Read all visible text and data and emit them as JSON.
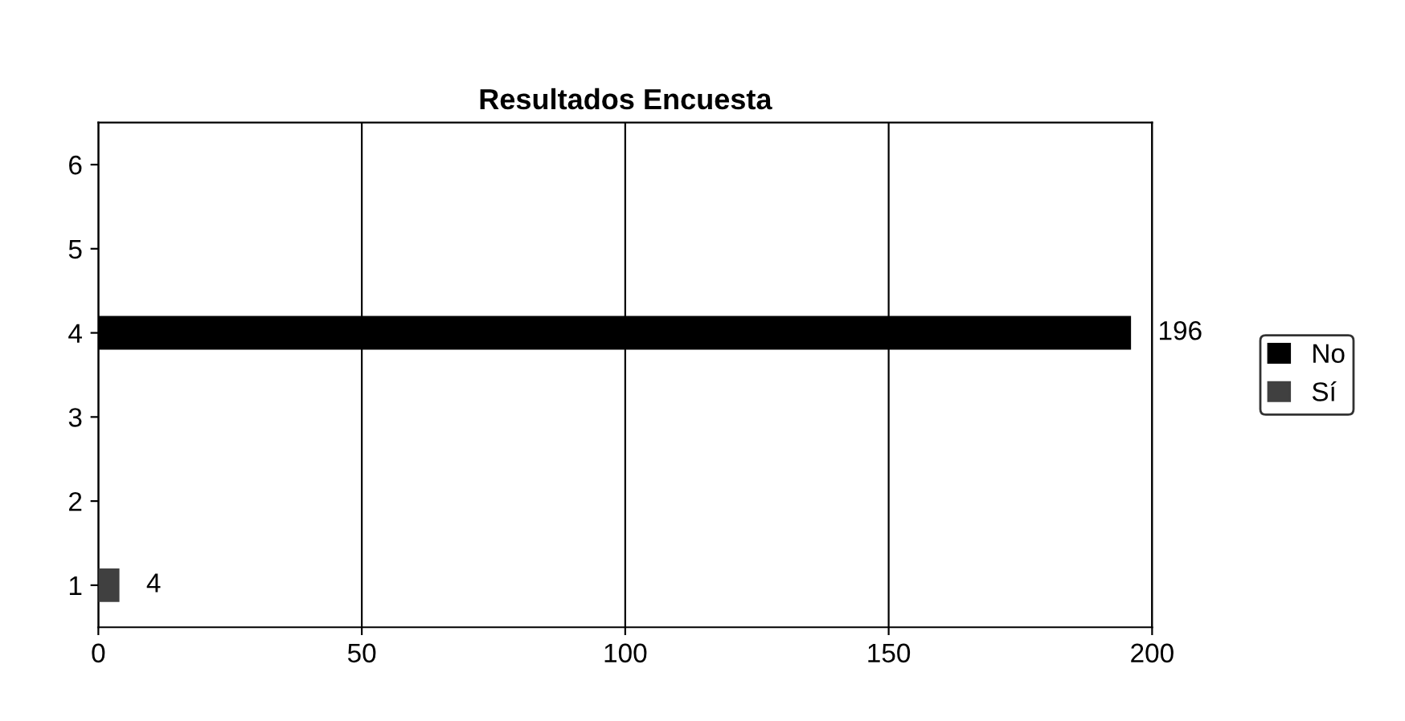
{
  "chart_data": {
    "type": "bar",
    "orientation": "horizontal",
    "title": "Resultados Encuesta",
    "categories": [
      "6",
      "5",
      "4",
      "3",
      "2",
      "1"
    ],
    "series": [
      {
        "name": "No",
        "color": "#000000",
        "values": [
          null,
          null,
          196,
          null,
          null,
          null
        ],
        "value_labels": [
          null,
          null,
          "196",
          null,
          null,
          null
        ]
      },
      {
        "name": "Sí",
        "color": "#404040",
        "values": [
          null,
          null,
          null,
          null,
          null,
          4
        ],
        "value_labels": [
          null,
          null,
          null,
          null,
          null,
          "4"
        ]
      }
    ],
    "xlim": [
      0,
      200
    ],
    "xticks": [
      0,
      50,
      100,
      150,
      200
    ],
    "grid": "x",
    "legend": "right"
  }
}
